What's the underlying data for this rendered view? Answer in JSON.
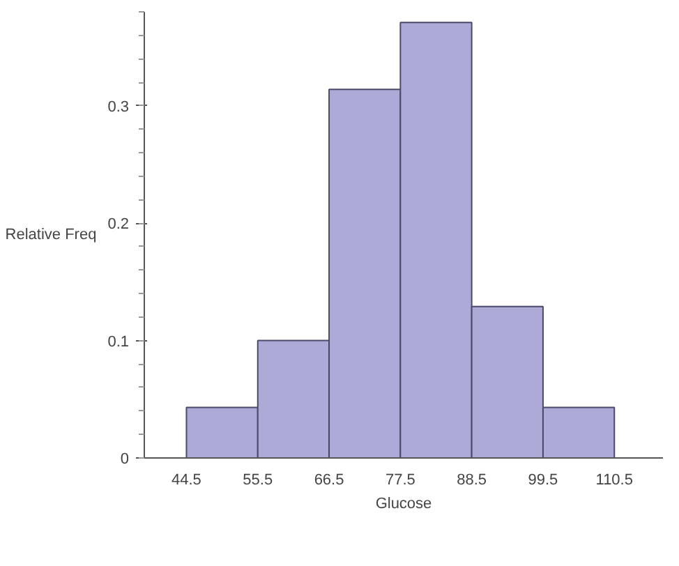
{
  "chart_data": {
    "type": "histogram",
    "xlabel": "Glucose",
    "ylabel": "Relative Freq",
    "bins": [
      44.5,
      55.5,
      66.5,
      77.5,
      88.5,
      99.5,
      110.5
    ],
    "values": [
      0.043,
      0.1,
      0.314,
      0.371,
      0.129,
      0.043
    ],
    "color": "#aeaad8",
    "xlim": [
      38,
      118
    ],
    "ylim": [
      0,
      0.38
    ],
    "xticks": [
      44.5,
      55.5,
      66.5,
      77.5,
      88.5,
      99.5,
      110.5
    ],
    "yticks": [
      0,
      0.1,
      0.2,
      0.3
    ],
    "grid": false
  }
}
